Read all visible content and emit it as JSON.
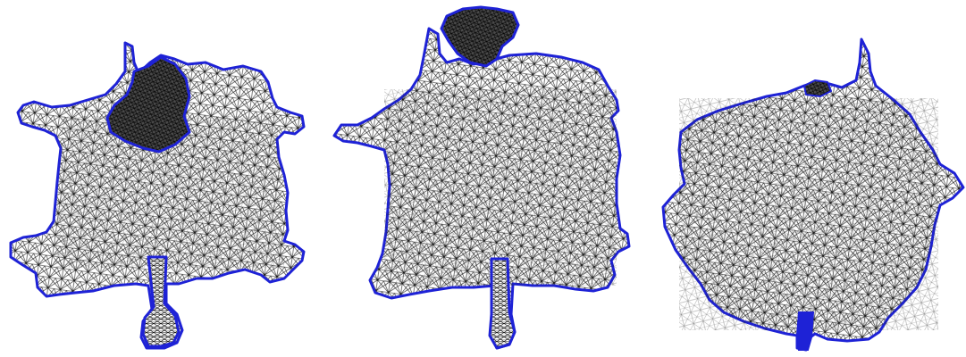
{
  "figure": {
    "panels": [
      {
        "id": "hide-1"
      },
      {
        "id": "hide-2"
      },
      {
        "id": "hide-3"
      }
    ],
    "colors": {
      "background": "#ffffff",
      "mesh_edge": "#111111",
      "mesh_fill": "#ffffff",
      "boundary": "#1e22d6",
      "dense_region": "#1a1a1a"
    }
  }
}
